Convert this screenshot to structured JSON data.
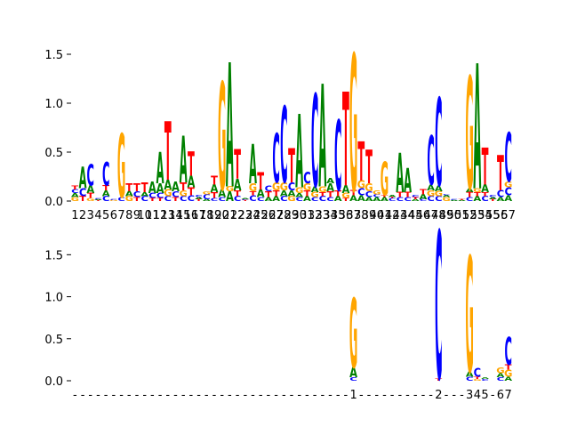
{
  "colors": {
    "A": "#008000",
    "C": "#0000ff",
    "G": "#ffa500",
    "T": "#ff0000"
  },
  "chart_data": [
    {
      "type": "sequence-logo",
      "ylim": [
        0,
        1.6
      ],
      "yticks": [
        0.0,
        0.5,
        1.0,
        1.5
      ],
      "ytick_labels": [
        "0.0",
        "0.5",
        "1.0",
        "1.5"
      ],
      "xtick_labels": [
        "1",
        "2",
        "3",
        "4",
        "5",
        "6",
        "7",
        "8",
        "9",
        "10",
        "11",
        "12",
        "13",
        "14",
        "15",
        "16",
        "17",
        "18",
        "19",
        "20",
        "21",
        "22",
        "23",
        "24",
        "25",
        "26",
        "27",
        "28",
        "29",
        "30",
        "31",
        "32",
        "33",
        "34",
        "35",
        "36",
        "37",
        "38",
        "39",
        "40",
        "41",
        "42",
        "43",
        "44",
        "45",
        "46",
        "47",
        "48",
        "49",
        "50",
        "51",
        "52",
        "53",
        "54",
        "55",
        "56",
        "57"
      ],
      "positions": [
        [
          [
            "G",
            0.04
          ],
          [
            "A",
            0.04
          ],
          [
            "C",
            0.04
          ],
          [
            "T",
            0.04
          ]
        ],
        [
          [
            "T",
            0.05
          ],
          [
            "C",
            0.08
          ],
          [
            "A",
            0.22
          ]
        ],
        [
          [
            "G",
            0.03
          ],
          [
            "T",
            0.05
          ],
          [
            "A",
            0.08
          ],
          [
            "C",
            0.22
          ]
        ],
        [
          [
            "T",
            0.01
          ],
          [
            "A",
            0.01
          ],
          [
            "C",
            0.01
          ]
        ],
        [
          [
            "C",
            0.05
          ],
          [
            "A",
            0.06
          ],
          [
            "T",
            0.05
          ],
          [
            "C",
            0.24
          ]
        ],
        [
          [
            "G",
            0.01
          ],
          [
            "C",
            0.01
          ]
        ],
        [
          [
            "C",
            0.04
          ],
          [
            "G",
            0.65
          ]
        ],
        [
          [
            "G",
            0.05
          ],
          [
            "A",
            0.05
          ],
          [
            "T",
            0.08
          ]
        ],
        [
          [
            "T",
            0.04
          ],
          [
            "C",
            0.06
          ],
          [
            "T",
            0.08
          ]
        ],
        [
          [
            "C",
            0.05
          ],
          [
            "A",
            0.04
          ],
          [
            "T",
            0.1
          ]
        ],
        [
          [
            "T",
            0.03
          ],
          [
            "C",
            0.05
          ],
          [
            "A",
            0.12
          ]
        ],
        [
          [
            "T",
            0.03
          ],
          [
            "C",
            0.05
          ],
          [
            "A",
            0.1
          ],
          [
            "A",
            0.32
          ]
        ],
        [
          [
            "C",
            0.05
          ],
          [
            "G",
            0.07
          ],
          [
            "A",
            0.1
          ],
          [
            "T",
            0.6
          ]
        ],
        [
          [
            "T",
            0.04
          ],
          [
            "C",
            0.06
          ],
          [
            "A",
            0.1
          ]
        ],
        [
          [
            "C",
            0.05
          ],
          [
            "G",
            0.06
          ],
          [
            "T",
            0.08
          ],
          [
            "A",
            0.48
          ]
        ],
        [
          [
            "C",
            0.06
          ],
          [
            "T",
            0.08
          ],
          [
            "A",
            0.12
          ],
          [
            "T",
            0.25
          ]
        ],
        [
          [
            "T",
            0.02
          ],
          [
            "A",
            0.02
          ],
          [
            "C",
            0.02
          ]
        ],
        [
          [
            "A",
            0.02
          ],
          [
            "C",
            0.05
          ],
          [
            "G",
            0.03
          ]
        ],
        [
          [
            "C",
            0.03
          ],
          [
            "T",
            0.06
          ],
          [
            "A",
            0.08
          ],
          [
            "T",
            0.09
          ]
        ],
        [
          [
            "C",
            0.04
          ],
          [
            "A",
            0.08
          ],
          [
            "G",
            1.1
          ]
        ],
        [
          [
            "A",
            0.1
          ],
          [
            "G",
            0.05
          ],
          [
            "A",
            1.27
          ]
        ],
        [
          [
            "C",
            0.05
          ],
          [
            "T",
            0.06
          ],
          [
            "A",
            0.12
          ],
          [
            "T",
            0.3
          ]
        ],
        [
          [
            "T",
            0.01
          ],
          [
            "C",
            0.01
          ],
          [
            "A",
            0.01
          ]
        ],
        [
          [
            "C",
            0.06
          ],
          [
            "T",
            0.04
          ],
          [
            "G",
            0.08
          ],
          [
            "A",
            0.4
          ]
        ],
        [
          [
            "C",
            0.04
          ],
          [
            "A",
            0.08
          ],
          [
            "T",
            0.18
          ]
        ],
        [
          [
            "A",
            0.04
          ],
          [
            "T",
            0.06
          ],
          [
            "C",
            0.06
          ]
        ],
        [
          [
            "A",
            0.05
          ],
          [
            "T",
            0.06
          ],
          [
            "G",
            0.08
          ],
          [
            "C",
            0.5
          ]
        ],
        [
          [
            "C",
            0.05
          ],
          [
            "A",
            0.06
          ],
          [
            "G",
            0.08
          ],
          [
            "C",
            0.78
          ]
        ],
        [
          [
            "G",
            0.05
          ],
          [
            "A",
            0.06
          ],
          [
            "C",
            0.08
          ],
          [
            "T",
            0.35
          ]
        ],
        [
          [
            "C",
            0.04
          ],
          [
            "A",
            0.04
          ],
          [
            "G",
            0.06
          ],
          [
            "A",
            0.75
          ]
        ],
        [
          [
            "A",
            0.05
          ],
          [
            "T",
            0.06
          ],
          [
            "G",
            0.07
          ],
          [
            "C",
            0.12
          ]
        ],
        [
          [
            "C",
            0.04
          ],
          [
            "G",
            0.05
          ],
          [
            "A",
            0.06
          ],
          [
            "C",
            0.95
          ]
        ],
        [
          [
            "C",
            0.05
          ],
          [
            "T",
            0.04
          ],
          [
            "G",
            0.06
          ],
          [
            "A",
            1.05
          ]
        ],
        [
          [
            "C",
            0.04
          ],
          [
            "T",
            0.06
          ],
          [
            "A",
            0.08
          ],
          [
            "A",
            0.05
          ]
        ],
        [
          [
            "A",
            0.05
          ],
          [
            "T",
            0.06
          ],
          [
            "C",
            0.72
          ]
        ],
        [
          [
            "T",
            0.03
          ],
          [
            "G",
            0.05
          ],
          [
            "A",
            0.08
          ],
          [
            "T",
            0.96
          ]
        ],
        [
          [
            "A",
            0.06
          ],
          [
            "T",
            0.05
          ],
          [
            "G",
            1.4
          ]
        ],
        [
          [
            "A",
            0.06
          ],
          [
            "C",
            0.07
          ],
          [
            "G",
            0.08
          ],
          [
            "T",
            0.4
          ]
        ],
        [
          [
            "A",
            0.04
          ],
          [
            "C",
            0.06
          ],
          [
            "G",
            0.08
          ],
          [
            "T",
            0.34
          ]
        ],
        [
          [
            "A",
            0.04
          ],
          [
            "C",
            0.03
          ],
          [
            "G",
            0.04
          ]
        ],
        [
          [
            "A",
            0.04
          ],
          [
            "T",
            0.02
          ],
          [
            "G",
            0.34
          ]
        ],
        [
          [
            "C",
            0.03
          ],
          [
            "T",
            0.01
          ],
          [
            "A",
            0.02
          ]
        ],
        [
          [
            "C",
            0.04
          ],
          [
            "T",
            0.05
          ],
          [
            "A",
            0.4
          ]
        ],
        [
          [
            "C",
            0.04
          ],
          [
            "T",
            0.05
          ],
          [
            "A",
            0.25
          ]
        ],
        [
          [
            "A",
            0.02
          ],
          [
            "T",
            0.02
          ],
          [
            "C",
            0.02
          ]
        ],
        [
          [
            "C",
            0.02
          ],
          [
            "A",
            0.05
          ],
          [
            "T",
            0.05
          ]
        ],
        [
          [
            "C",
            0.05
          ],
          [
            "G",
            0.06
          ],
          [
            "A",
            0.06
          ],
          [
            "C",
            0.5
          ]
        ],
        [
          [
            "C",
            0.05
          ],
          [
            "G",
            0.05
          ],
          [
            "A",
            0.06
          ],
          [
            "C",
            0.9
          ]
        ],
        [
          [
            "G",
            0.04
          ],
          [
            "A",
            0.02
          ],
          [
            "C",
            0.01
          ]
        ],
        [
          [
            "A",
            0.01
          ],
          [
            "C",
            0.01
          ]
        ],
        [
          [
            "A",
            0.01
          ],
          [
            "T",
            0.01
          ]
        ],
        [
          [
            "C",
            0.04
          ],
          [
            "T",
            0.05
          ],
          [
            "A",
            0.04
          ],
          [
            "G",
            1.15
          ]
        ],
        [
          [
            "A",
            0.05
          ],
          [
            "T",
            0.04
          ],
          [
            "G",
            0.04
          ],
          [
            "A",
            1.28
          ]
        ],
        [
          [
            "C",
            0.05
          ],
          [
            "T",
            0.04
          ],
          [
            "A",
            0.08
          ],
          [
            "T",
            0.38
          ]
        ],
        [
          [
            "T",
            0.02
          ],
          [
            "A",
            0.02
          ],
          [
            "C",
            0.02
          ]
        ],
        [
          [
            "A",
            0.04
          ],
          [
            "C",
            0.07
          ],
          [
            "T",
            0.36
          ]
        ],
        [
          [
            "A",
            0.06
          ],
          [
            "C",
            0.08
          ],
          [
            "G",
            0.06
          ],
          [
            "C",
            0.5
          ]
        ]
      ]
    },
    {
      "type": "sequence-logo",
      "ylim": [
        0,
        1.8
      ],
      "yticks": [
        0.0,
        0.5,
        1.0,
        1.5
      ],
      "ytick_labels": [
        "0.0",
        "0.5",
        "1.0",
        "1.5"
      ],
      "xtick_labels": [
        "-",
        "-",
        "-",
        "-",
        "-",
        "-",
        "-",
        "-",
        "-",
        "-",
        "-",
        "-",
        "-",
        "-",
        "-",
        "-",
        "-",
        "-",
        "-",
        "-",
        "-",
        "-",
        "-",
        "-",
        "-",
        "-",
        "-",
        "-",
        "-",
        "-",
        "-",
        "-",
        "-",
        "-",
        "-",
        "-",
        "1",
        "-",
        "-",
        "-",
        "-",
        "-",
        "-",
        "-",
        "-",
        "-",
        "-",
        "2",
        "-",
        "-",
        "-",
        "3",
        "4",
        "5",
        "-",
        "6",
        "7"
      ],
      "positions": [
        [],
        [],
        [],
        [],
        [],
        [],
        [],
        [],
        [],
        [],
        [],
        [],
        [],
        [],
        [],
        [],
        [],
        [],
        [],
        [],
        [],
        [],
        [],
        [],
        [],
        [],
        [],
        [],
        [],
        [],
        [],
        [],
        [],
        [],
        [],
        [],
        [
          [
            "C",
            0.04
          ],
          [
            "A",
            0.12
          ],
          [
            "G",
            0.83
          ]
        ],
        [],
        [],
        [],
        [],
        [],
        [],
        [],
        [],
        [],
        [],
        [
          [
            "T",
            0.03
          ],
          [
            "C",
            1.76
          ]
        ],
        [],
        [],
        [],
        [
          [
            "C",
            0.05
          ],
          [
            "A",
            0.06
          ],
          [
            "G",
            1.38
          ]
        ],
        [
          [
            "G",
            0.02
          ],
          [
            "T",
            0.03
          ],
          [
            "C",
            0.1
          ]
        ],
        [
          [
            "C",
            0.02
          ],
          [
            "A",
            0.02
          ]
        ],
        [],
        [
          [
            "C",
            0.04
          ],
          [
            "A",
            0.05
          ],
          [
            "G",
            0.07
          ]
        ],
        [
          [
            "A",
            0.05
          ],
          [
            "G",
            0.08
          ],
          [
            "T",
            0.06
          ],
          [
            "C",
            0.33
          ]
        ]
      ]
    }
  ]
}
